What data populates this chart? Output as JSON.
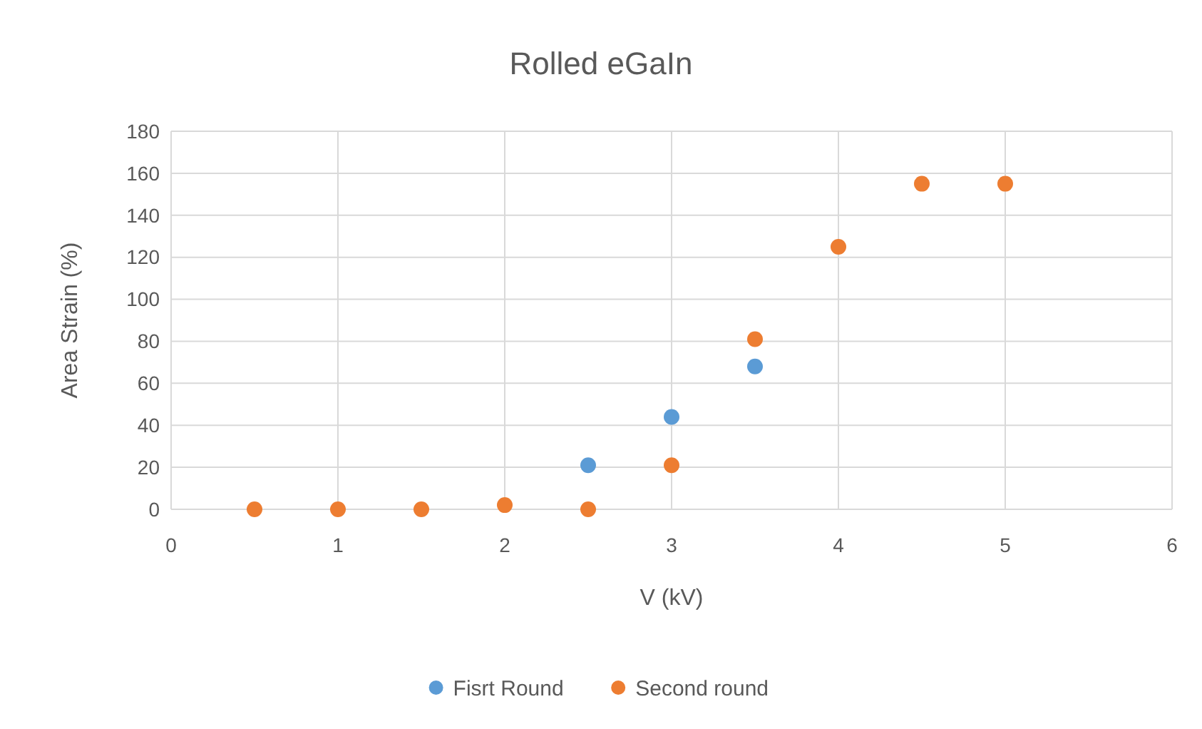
{
  "chart_data": {
    "type": "scatter",
    "title": "Rolled eGaIn",
    "xlabel": "V (kV)",
    "ylabel": "Area Strain (%)",
    "xlim": [
      0,
      6
    ],
    "xticks": [
      0,
      1,
      2,
      3,
      4,
      5,
      6
    ],
    "ylim": [
      0,
      180
    ],
    "yticks": [
      0,
      20,
      40,
      60,
      80,
      100,
      120,
      140,
      160,
      180
    ],
    "grid": true,
    "legend": "bottom",
    "marker": "circle",
    "series": [
      {
        "name": "Fisrt Round",
        "color": "#5b9bd5",
        "x": [
          2.5,
          3,
          3.5
        ],
        "values": [
          21,
          44,
          68
        ]
      },
      {
        "name": "Second round",
        "color": "#ed7d31",
        "x": [
          0.5,
          1,
          1.5,
          2,
          2.5,
          3,
          3.5,
          4,
          4.5,
          5
        ],
        "values": [
          0,
          0,
          0,
          2,
          0,
          21,
          81,
          125,
          155,
          155
        ]
      }
    ]
  }
}
